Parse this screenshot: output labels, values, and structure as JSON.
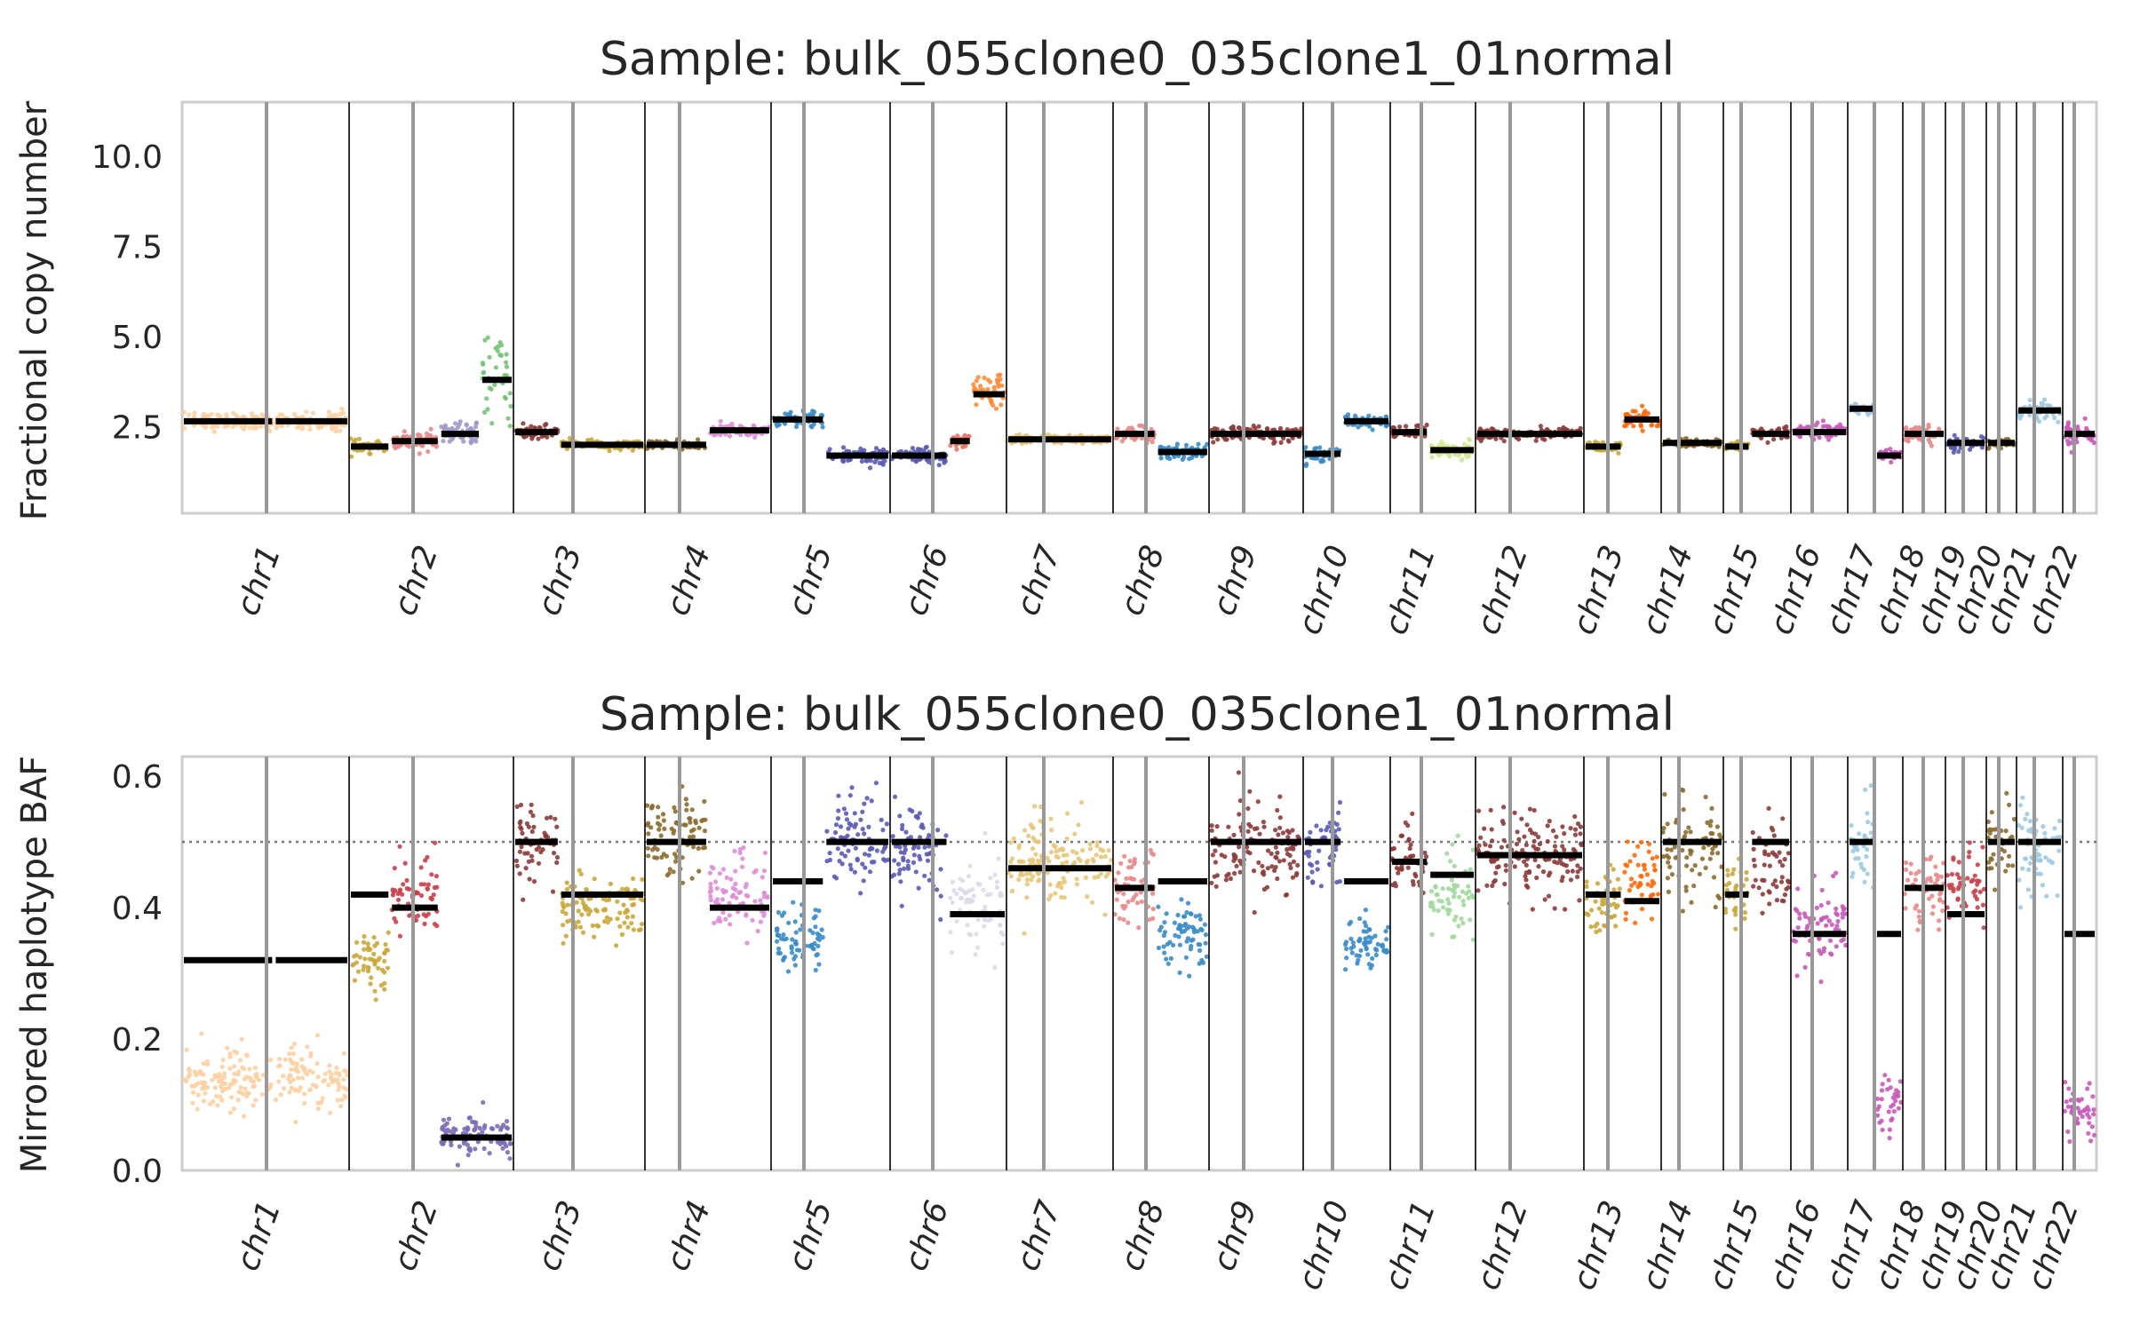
{
  "figure": {
    "background": "#ffffff",
    "axes_edge_color": "#cccccc",
    "boundary_color": "#000000",
    "centromere_color": "#999999",
    "segment_color": "#000000"
  },
  "chart_data": [
    {
      "type": "scatter",
      "title": "Sample: bulk_055clone0_035clone1_01normal",
      "xlabel": "",
      "ylabel": "Fractional copy number",
      "ylim": [
        0.1,
        11.5
      ],
      "yticks": [
        2.5,
        5.0,
        7.5,
        10.0
      ],
      "ytick_labels": [
        "2.5",
        "5.0",
        "7.5",
        "10.0"
      ],
      "grid": false,
      "chromosomes": [
        "chr1",
        "chr2",
        "chr3",
        "chr4",
        "chr5",
        "chr6",
        "chr7",
        "chr8",
        "chr9",
        "chr10",
        "chr11",
        "chr12",
        "chr13",
        "chr14",
        "chr15",
        "chr16",
        "chr17",
        "chr18",
        "chr19",
        "chr20",
        "chr21",
        "chr22"
      ],
      "segments": [
        {
          "chr": "chr1",
          "start": 0.0,
          "end": 0.55,
          "value": 2.65,
          "color": "#fdd0a2",
          "spread": 0.12
        },
        {
          "chr": "chr1",
          "start": 0.55,
          "end": 1.0,
          "value": 2.65,
          "color": "#fdd0a2",
          "spread": 0.12
        },
        {
          "chr": "chr2",
          "start": 0.0,
          "end": 0.25,
          "value": 1.95,
          "color": "#c9a93b",
          "spread": 0.08
        },
        {
          "chr": "chr2",
          "start": 0.25,
          "end": 0.55,
          "value": 2.1,
          "color": "#e78a8a",
          "spread": 0.12
        },
        {
          "chr": "chr2",
          "start": 0.55,
          "end": 0.8,
          "value": 2.3,
          "color": "#9e9ac8",
          "spread": 0.2
        },
        {
          "chr": "chr2",
          "start": 0.8,
          "end": 1.0,
          "value": 3.8,
          "color": "#74c476",
          "spread": 0.5
        },
        {
          "chr": "chr3",
          "start": 0.0,
          "end": 0.35,
          "value": 2.35,
          "color": "#8c3b3b",
          "spread": 0.1
        },
        {
          "chr": "chr3",
          "start": 0.35,
          "end": 1.0,
          "value": 2.0,
          "color": "#c9a93b",
          "spread": 0.06
        },
        {
          "chr": "chr4",
          "start": 0.0,
          "end": 0.5,
          "value": 2.0,
          "color": "#8c6d31",
          "spread": 0.06
        },
        {
          "chr": "chr4",
          "start": 0.5,
          "end": 1.0,
          "value": 2.4,
          "color": "#de8ed6",
          "spread": 0.08
        },
        {
          "chr": "chr5",
          "start": 0.0,
          "end": 0.45,
          "value": 2.7,
          "color": "#3a8cc6",
          "spread": 0.1
        },
        {
          "chr": "chr5",
          "start": 0.45,
          "end": 1.0,
          "value": 1.7,
          "color": "#5b5bb5",
          "spread": 0.12
        },
        {
          "chr": "chr6",
          "start": 0.0,
          "end": 0.5,
          "value": 1.7,
          "color": "#5b5bb5",
          "spread": 0.1
        },
        {
          "chr": "chr6",
          "start": 0.5,
          "end": 0.7,
          "value": 2.1,
          "color": "#e67a6b",
          "spread": 0.12
        },
        {
          "chr": "chr6",
          "start": 0.7,
          "end": 1.0,
          "value": 3.4,
          "color": "#fd8d3c",
          "spread": 0.3
        },
        {
          "chr": "chr7",
          "start": 0.0,
          "end": 1.0,
          "value": 2.15,
          "color": "#e7c77a",
          "spread": 0.06
        },
        {
          "chr": "chr8",
          "start": 0.0,
          "end": 0.45,
          "value": 2.3,
          "color": "#e78a8a",
          "spread": 0.1
        },
        {
          "chr": "chr8",
          "start": 0.45,
          "end": 1.0,
          "value": 1.8,
          "color": "#3a8cc6",
          "spread": 0.1
        },
        {
          "chr": "chr9",
          "start": 0.0,
          "end": 1.0,
          "value": 2.3,
          "color": "#8c3b3b",
          "spread": 0.1
        },
        {
          "chr": "chr10",
          "start": 0.0,
          "end": 0.45,
          "value": 1.75,
          "color": "#3a8cc6",
          "spread": 0.1
        },
        {
          "chr": "chr10",
          "start": 0.45,
          "end": 1.0,
          "value": 2.65,
          "color": "#3a8cc6",
          "spread": 0.08
        },
        {
          "chr": "chr11",
          "start": 0.0,
          "end": 0.45,
          "value": 2.35,
          "color": "#8c3b3b",
          "spread": 0.1
        },
        {
          "chr": "chr11",
          "start": 0.45,
          "end": 1.0,
          "value": 1.85,
          "color": "#d4e89a",
          "spread": 0.12
        },
        {
          "chr": "chr12",
          "start": 0.0,
          "end": 1.0,
          "value": 2.3,
          "color": "#8c3b3b",
          "spread": 0.08
        },
        {
          "chr": "chr13",
          "start": 0.0,
          "end": 0.5,
          "value": 1.95,
          "color": "#c9a93b",
          "spread": 0.08
        },
        {
          "chr": "chr13",
          "start": 0.5,
          "end": 1.0,
          "value": 2.7,
          "color": "#fd6b0c",
          "spread": 0.15
        },
        {
          "chr": "chr14",
          "start": 0.0,
          "end": 1.0,
          "value": 2.05,
          "color": "#8c6d31",
          "spread": 0.06
        },
        {
          "chr": "chr15",
          "start": 0.0,
          "end": 0.4,
          "value": 1.95,
          "color": "#c9a93b",
          "spread": 0.06
        },
        {
          "chr": "chr15",
          "start": 0.4,
          "end": 1.0,
          "value": 2.3,
          "color": "#8c3b3b",
          "spread": 0.08
        },
        {
          "chr": "chr16",
          "start": 0.0,
          "end": 1.0,
          "value": 2.35,
          "color": "#c85ab8",
          "spread": 0.1
        },
        {
          "chr": "chr17",
          "start": 0.0,
          "end": 0.5,
          "value": 3.0,
          "color": "#9ecae1",
          "spread": 0.1
        },
        {
          "chr": "chr17",
          "start": 0.5,
          "end": 1.0,
          "value": 1.7,
          "color": "#c85ab8",
          "spread": 0.1
        },
        {
          "chr": "chr18",
          "start": 0.0,
          "end": 1.0,
          "value": 2.3,
          "color": "#e78a8a",
          "spread": 0.1
        },
        {
          "chr": "chr19",
          "start": 0.0,
          "end": 1.0,
          "value": 2.05,
          "color": "#5b5bb5",
          "spread": 0.1
        },
        {
          "chr": "chr20",
          "start": 0.0,
          "end": 1.0,
          "value": 2.05,
          "color": "#8c6d31",
          "spread": 0.08
        },
        {
          "chr": "chr21",
          "start": 0.0,
          "end": 1.0,
          "value": 2.95,
          "color": "#9ecae1",
          "spread": 0.12
        },
        {
          "chr": "chr22",
          "start": 0.0,
          "end": 1.0,
          "value": 2.3,
          "color": "#c85ab8",
          "spread": 0.15
        }
      ]
    },
    {
      "type": "scatter",
      "title": "Sample: bulk_055clone0_035clone1_01normal",
      "xlabel": "",
      "ylabel": "Mirrored haplotype BAF",
      "ylim": [
        0.0,
        0.63
      ],
      "yticks": [
        0.0,
        0.2,
        0.4,
        0.6
      ],
      "ytick_labels": [
        "0.0",
        "0.2",
        "0.4",
        "0.6"
      ],
      "reference_line": 0.5,
      "grid": false,
      "chromosomes": [
        "chr1",
        "chr2",
        "chr3",
        "chr4",
        "chr5",
        "chr6",
        "chr7",
        "chr8",
        "chr9",
        "chr10",
        "chr11",
        "chr12",
        "chr13",
        "chr14",
        "chr15",
        "chr16",
        "chr17",
        "chr18",
        "chr19",
        "chr20",
        "chr21",
        "chr22"
      ],
      "segments": [
        {
          "chr": "chr1",
          "start": 0.0,
          "end": 0.55,
          "value": 0.32,
          "points_mean": 0.14,
          "color": "#fdd0a2",
          "spread": 0.025
        },
        {
          "chr": "chr1",
          "start": 0.55,
          "end": 1.0,
          "value": 0.32,
          "points_mean": 0.14,
          "color": "#fdd0a2",
          "spread": 0.025
        },
        {
          "chr": "chr2",
          "start": 0.0,
          "end": 0.25,
          "value": 0.42,
          "points_mean": 0.32,
          "color": "#c9a93b",
          "spread": 0.02
        },
        {
          "chr": "chr2",
          "start": 0.25,
          "end": 0.55,
          "value": 0.4,
          "points_mean": 0.42,
          "color": "#c9404a",
          "spread": 0.03
        },
        {
          "chr": "chr2",
          "start": 0.55,
          "end": 1.0,
          "value": 0.05,
          "points_mean": 0.05,
          "color": "#7b6bb5",
          "spread": 0.015
        },
        {
          "chr": "chr3",
          "start": 0.0,
          "end": 0.35,
          "value": 0.5,
          "points_mean": 0.5,
          "color": "#8c3b3b",
          "spread": 0.035
        },
        {
          "chr": "chr3",
          "start": 0.35,
          "end": 1.0,
          "value": 0.42,
          "points_mean": 0.4,
          "color": "#c9a93b",
          "spread": 0.025
        },
        {
          "chr": "chr4",
          "start": 0.0,
          "end": 0.5,
          "value": 0.5,
          "points_mean": 0.51,
          "color": "#8c6d31",
          "spread": 0.03
        },
        {
          "chr": "chr4",
          "start": 0.5,
          "end": 1.0,
          "value": 0.4,
          "points_mean": 0.42,
          "color": "#de8ed6",
          "spread": 0.03
        },
        {
          "chr": "chr5",
          "start": 0.0,
          "end": 0.45,
          "value": 0.44,
          "points_mean": 0.35,
          "color": "#3a8cc6",
          "spread": 0.025
        },
        {
          "chr": "chr5",
          "start": 0.45,
          "end": 1.0,
          "value": 0.5,
          "points_mean": 0.5,
          "color": "#5b5bb5",
          "spread": 0.04
        },
        {
          "chr": "chr6",
          "start": 0.0,
          "end": 0.5,
          "value": 0.5,
          "points_mean": 0.49,
          "color": "#5b5bb5",
          "spread": 0.035
        },
        {
          "chr": "chr6",
          "start": 0.5,
          "end": 1.0,
          "value": 0.39,
          "points_mean": 0.4,
          "color": "#dadaeb",
          "spread": 0.03
        },
        {
          "chr": "chr7",
          "start": 0.0,
          "end": 1.0,
          "value": 0.46,
          "points_mean": 0.47,
          "color": "#e7c77a",
          "spread": 0.035
        },
        {
          "chr": "chr8",
          "start": 0.0,
          "end": 0.45,
          "value": 0.43,
          "points_mean": 0.43,
          "color": "#e78a8a",
          "spread": 0.03
        },
        {
          "chr": "chr8",
          "start": 0.45,
          "end": 1.0,
          "value": 0.44,
          "points_mean": 0.36,
          "color": "#3a8cc6",
          "spread": 0.025
        },
        {
          "chr": "chr9",
          "start": 0.0,
          "end": 1.0,
          "value": 0.5,
          "points_mean": 0.49,
          "color": "#8c3b3b",
          "spread": 0.035
        },
        {
          "chr": "chr10",
          "start": 0.0,
          "end": 0.45,
          "value": 0.5,
          "points_mean": 0.49,
          "color": "#5b5bb5",
          "spread": 0.035
        },
        {
          "chr": "chr10",
          "start": 0.45,
          "end": 1.0,
          "value": 0.44,
          "points_mean": 0.34,
          "color": "#3a8cc6",
          "spread": 0.025
        },
        {
          "chr": "chr11",
          "start": 0.0,
          "end": 0.45,
          "value": 0.47,
          "points_mean": 0.47,
          "color": "#8c3b3b",
          "spread": 0.03
        },
        {
          "chr": "chr11",
          "start": 0.45,
          "end": 1.0,
          "value": 0.45,
          "points_mean": 0.42,
          "color": "#a1d99b",
          "spread": 0.03
        },
        {
          "chr": "chr12",
          "start": 0.0,
          "end": 1.0,
          "value": 0.48,
          "points_mean": 0.48,
          "color": "#8c3b3b",
          "spread": 0.035
        },
        {
          "chr": "chr13",
          "start": 0.0,
          "end": 0.5,
          "value": 0.42,
          "points_mean": 0.4,
          "color": "#c9a93b",
          "spread": 0.025
        },
        {
          "chr": "chr13",
          "start": 0.5,
          "end": 1.0,
          "value": 0.41,
          "points_mean": 0.44,
          "color": "#fd6b0c",
          "spread": 0.03
        },
        {
          "chr": "chr14",
          "start": 0.0,
          "end": 1.0,
          "value": 0.5,
          "points_mean": 0.49,
          "color": "#8c6d31",
          "spread": 0.035
        },
        {
          "chr": "chr15",
          "start": 0.0,
          "end": 0.4,
          "value": 0.42,
          "points_mean": 0.42,
          "color": "#c9a93b",
          "spread": 0.03
        },
        {
          "chr": "chr15",
          "start": 0.4,
          "end": 1.0,
          "value": 0.5,
          "points_mean": 0.47,
          "color": "#8c3b3b",
          "spread": 0.035
        },
        {
          "chr": "chr16",
          "start": 0.0,
          "end": 1.0,
          "value": 0.36,
          "points_mean": 0.37,
          "color": "#c85ab8",
          "spread": 0.03
        },
        {
          "chr": "chr17",
          "start": 0.0,
          "end": 0.5,
          "value": 0.5,
          "points_mean": 0.49,
          "color": "#9ecae1",
          "spread": 0.035
        },
        {
          "chr": "chr17",
          "start": 0.5,
          "end": 1.0,
          "value": 0.36,
          "points_mean": 0.1,
          "color": "#c85ab8",
          "spread": 0.02
        },
        {
          "chr": "chr18",
          "start": 0.0,
          "end": 1.0,
          "value": 0.43,
          "points_mean": 0.43,
          "color": "#e78a8a",
          "spread": 0.03
        },
        {
          "chr": "chr19",
          "start": 0.0,
          "end": 1.0,
          "value": 0.39,
          "points_mean": 0.43,
          "color": "#c9404a",
          "spread": 0.035
        },
        {
          "chr": "chr20",
          "start": 0.0,
          "end": 1.0,
          "value": 0.5,
          "points_mean": 0.5,
          "color": "#8c6d31",
          "spread": 0.03
        },
        {
          "chr": "chr21",
          "start": 0.0,
          "end": 1.0,
          "value": 0.5,
          "points_mean": 0.49,
          "color": "#9ecae1",
          "spread": 0.035
        },
        {
          "chr": "chr22",
          "start": 0.0,
          "end": 1.0,
          "value": 0.36,
          "points_mean": 0.09,
          "color": "#c85ab8",
          "spread": 0.02
        }
      ]
    }
  ]
}
